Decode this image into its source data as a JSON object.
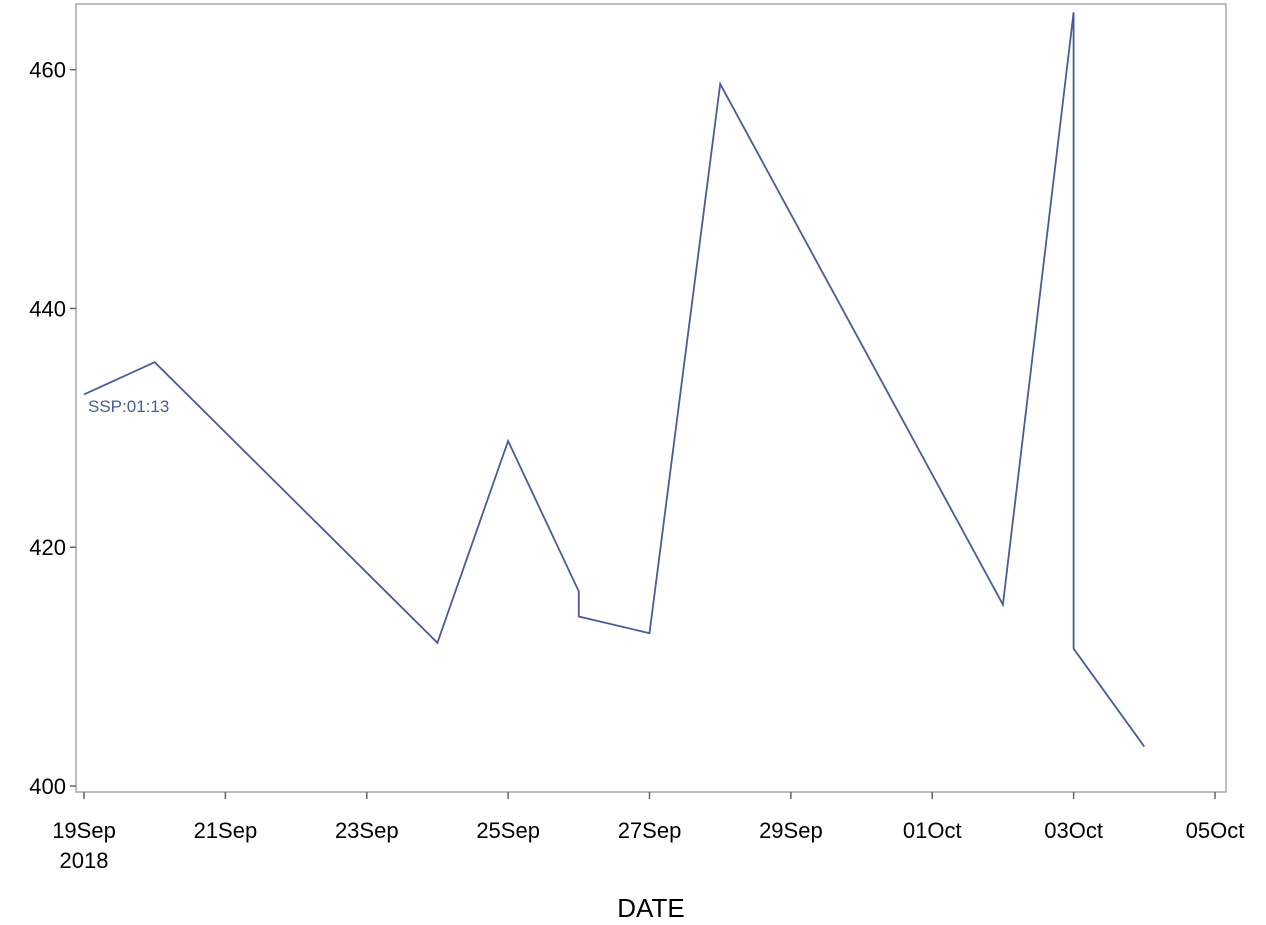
{
  "chart_data": {
    "type": "line",
    "title": "",
    "xlabel": "DATE",
    "ylabel": "",
    "x_tick_labels": [
      "19Sep",
      "21Sep",
      "23Sep",
      "25Sep",
      "27Sep",
      "29Sep",
      "01Oct",
      "03Oct",
      "05Oct"
    ],
    "x_tick_values": [
      "2018-09-19",
      "2018-09-21",
      "2018-09-23",
      "2018-09-25",
      "2018-09-27",
      "2018-09-29",
      "2018-10-01",
      "2018-10-03",
      "2018-10-05"
    ],
    "x_year_label": "2018",
    "xlim": [
      "2018-09-19",
      "2018-10-05"
    ],
    "y_ticks": [
      400,
      420,
      440,
      460
    ],
    "ylim": [
      399.5,
      465.5
    ],
    "grid": false,
    "line_color": "#4a5a9a",
    "annotation": "SSP:01:13",
    "series": [
      {
        "points": [
          {
            "x": "2018-09-19",
            "y": 432.8
          },
          {
            "x": "2018-09-20",
            "y": 435.5
          },
          {
            "x": "2018-09-24",
            "y": 412.0
          },
          {
            "x": "2018-09-25",
            "y": 428.9
          },
          {
            "x": "2018-09-26",
            "y": 416.3
          },
          {
            "x": "2018-09-26",
            "y": 414.2
          },
          {
            "x": "2018-09-27",
            "y": 412.8
          },
          {
            "x": "2018-09-28",
            "y": 458.8
          },
          {
            "x": "2018-10-02",
            "y": 415.2
          },
          {
            "x": "2018-10-03",
            "y": 464.8
          },
          {
            "x": "2018-10-03",
            "y": 411.5
          },
          {
            "x": "2018-10-04",
            "y": 403.3
          }
        ]
      }
    ]
  }
}
